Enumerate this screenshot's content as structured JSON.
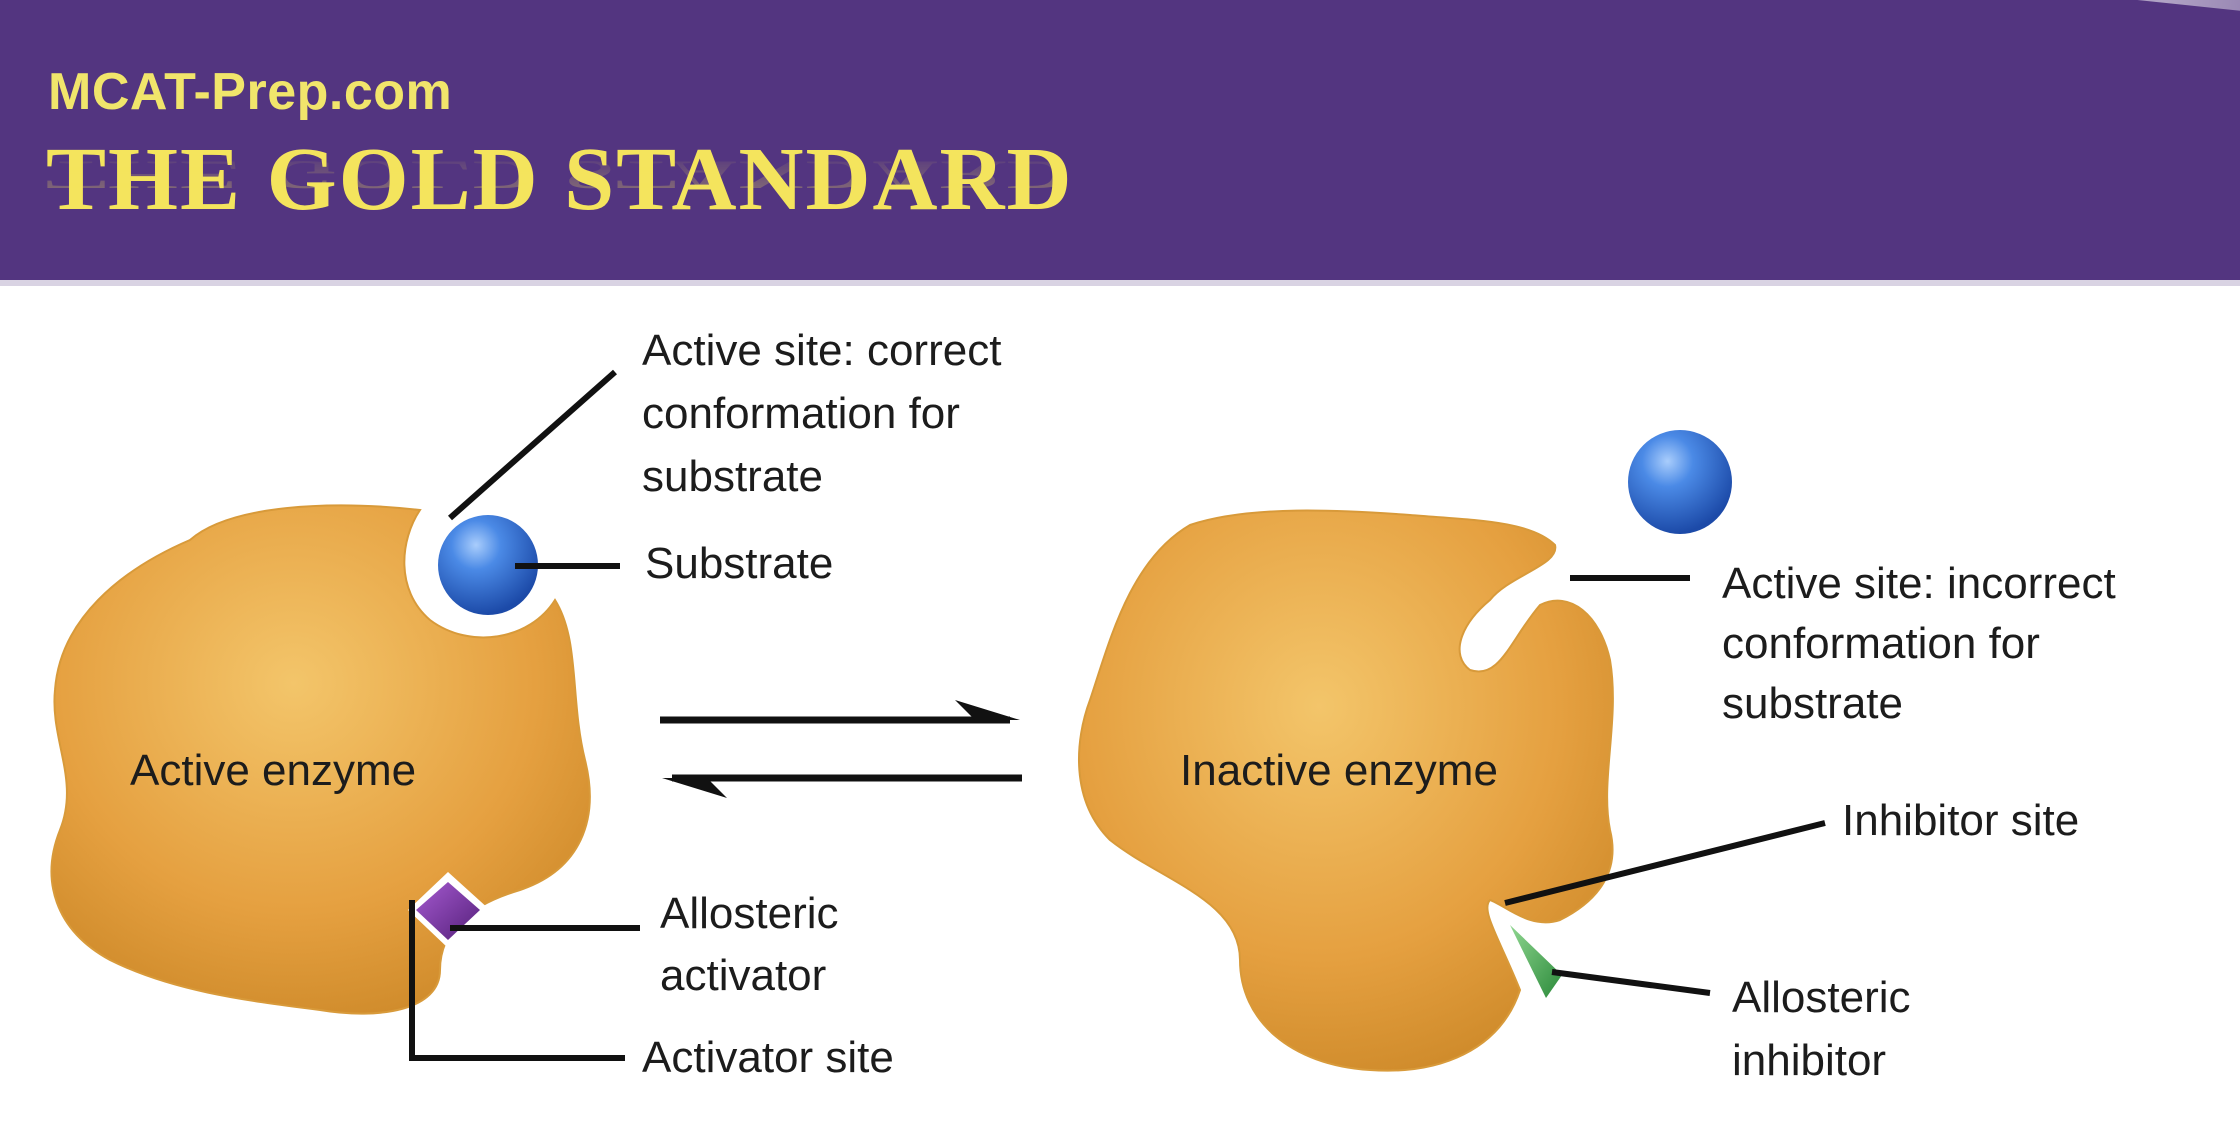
{
  "header": {
    "site_name": "MCAT-Prep.com",
    "brand_title": "THE GOLD STANDARD"
  },
  "colors": {
    "banner": "#533580",
    "title_text": "#f4e45d",
    "enzyme": "#e5a545",
    "substrate": "#2f6bd0",
    "activator": "#7a2d9a",
    "inhibitor": "#3fa84f"
  },
  "diagram": {
    "active_enzyme": {
      "label": "Active enzyme",
      "active_site_label": [
        "Active site: correct",
        "conformation for",
        "substrate"
      ],
      "substrate_label": "Substrate",
      "allosteric_activator_label": [
        "Allosteric",
        "activator"
      ],
      "activator_site_label": "Activator site"
    },
    "inactive_enzyme": {
      "label": "Inactive enzyme",
      "active_site_label": [
        "Active site: incorrect",
        "conformation for",
        "substrate"
      ],
      "inhibitor_site_label": "Inhibitor site",
      "allosteric_inhibitor_label": [
        "Allosteric",
        "inhibitor"
      ]
    }
  }
}
